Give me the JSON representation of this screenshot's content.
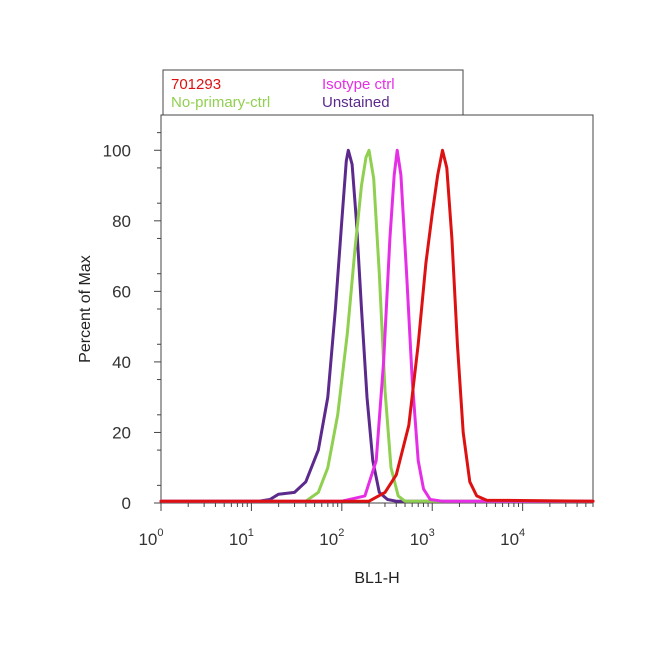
{
  "chart_data": {
    "type": "line",
    "title": "",
    "xlabel": "BL1-H",
    "ylabel": "Percent of Max",
    "x_scale": "log",
    "xlim": [
      1,
      60000
    ],
    "ylim": [
      0,
      110
    ],
    "grid": false,
    "x_ticks": [
      {
        "base": "10",
        "exp": "0"
      },
      {
        "base": "10",
        "exp": "1"
      },
      {
        "base": "10",
        "exp": "2"
      },
      {
        "base": "10",
        "exp": "3"
      },
      {
        "base": "10",
        "exp": "4"
      }
    ],
    "y_ticks": [
      "0",
      "20",
      "40",
      "60",
      "80",
      "100"
    ],
    "legend_position": "top",
    "series": [
      {
        "name": "Unstained",
        "color": "#5b2a8c",
        "points": [
          [
            1,
            0.5
          ],
          [
            12,
            0.5
          ],
          [
            16,
            1
          ],
          [
            20,
            2.5
          ],
          [
            30,
            3
          ],
          [
            40,
            6
          ],
          [
            55,
            15
          ],
          [
            70,
            30
          ],
          [
            85,
            55
          ],
          [
            100,
            80
          ],
          [
            112,
            97
          ],
          [
            118,
            100
          ],
          [
            130,
            96
          ],
          [
            145,
            80
          ],
          [
            165,
            55
          ],
          [
            190,
            30
          ],
          [
            220,
            12
          ],
          [
            260,
            3
          ],
          [
            320,
            1
          ],
          [
            400,
            0.5
          ],
          [
            60000,
            0.5
          ]
        ]
      },
      {
        "name": "No-primary-ctrl",
        "color": "#90d050",
        "points": [
          [
            1,
            0.5
          ],
          [
            40,
            0.5
          ],
          [
            55,
            3
          ],
          [
            70,
            10
          ],
          [
            90,
            25
          ],
          [
            115,
            48
          ],
          [
            140,
            72
          ],
          [
            165,
            90
          ],
          [
            185,
            98
          ],
          [
            200,
            100
          ],
          [
            225,
            92
          ],
          [
            260,
            65
          ],
          [
            300,
            32
          ],
          [
            350,
            10
          ],
          [
            420,
            2
          ],
          [
            500,
            0.5
          ],
          [
            60000,
            0.5
          ]
        ]
      },
      {
        "name": "Isotype ctrl",
        "color": "#e62ee6",
        "points": [
          [
            1,
            0.5
          ],
          [
            100,
            0.5
          ],
          [
            180,
            2
          ],
          [
            240,
            12
          ],
          [
            290,
            40
          ],
          [
            340,
            75
          ],
          [
            380,
            93
          ],
          [
            410,
            100
          ],
          [
            450,
            93
          ],
          [
            520,
            65
          ],
          [
            600,
            35
          ],
          [
            700,
            12
          ],
          [
            800,
            4
          ],
          [
            950,
            1
          ],
          [
            1300,
            0.5
          ],
          [
            60000,
            0.5
          ]
        ]
      },
      {
        "name": "701293",
        "color": "#dd1111",
        "points": [
          [
            1,
            0.5
          ],
          [
            200,
            0.5
          ],
          [
            300,
            3
          ],
          [
            400,
            8
          ],
          [
            550,
            22
          ],
          [
            700,
            45
          ],
          [
            850,
            68
          ],
          [
            1000,
            82
          ],
          [
            1150,
            93
          ],
          [
            1300,
            100
          ],
          [
            1450,
            95
          ],
          [
            1650,
            75
          ],
          [
            1900,
            45
          ],
          [
            2200,
            20
          ],
          [
            2600,
            6
          ],
          [
            3100,
            2
          ],
          [
            4000,
            0.8
          ],
          [
            60000,
            0.5
          ]
        ]
      }
    ]
  }
}
